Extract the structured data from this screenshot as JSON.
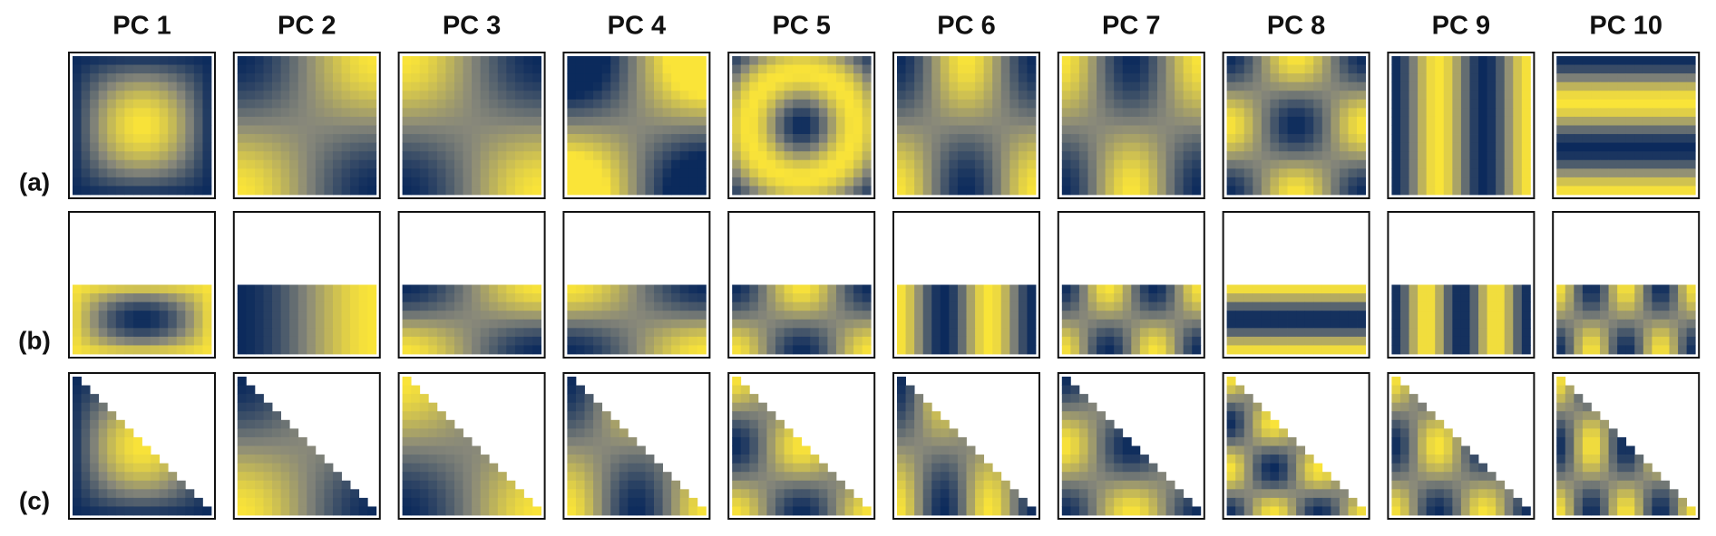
{
  "columns": [
    "PC 1",
    "PC 2",
    "PC 3",
    "PC 4",
    "PC 5",
    "PC 6",
    "PC 7",
    "PC 8",
    "PC 9",
    "PC 10"
  ],
  "rows": [
    "(a)",
    "(b)",
    "(c)"
  ]
}
